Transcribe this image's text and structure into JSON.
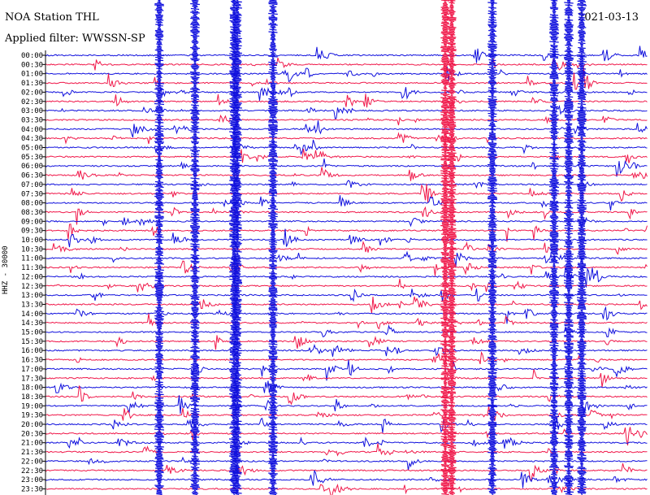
{
  "header": {
    "station": "NOA Station THL",
    "filter": "Applied filter: WWSSN-SP",
    "date": "2021-03-13"
  },
  "channel_label": "HHZ - 30000",
  "colors": {
    "trace_a": "#1010dd",
    "trace_b": "#f0184a",
    "axis": "#000000"
  },
  "chart_data": {
    "type": "line",
    "title": "NOA Station THL",
    "subtitle": "Applied filter: WWSSN-SP",
    "ylabel": "HHZ - 30000",
    "xlabel": "",
    "grid": false,
    "tick_labels": [
      "00:00",
      "00:30",
      "01:00",
      "01:30",
      "02:00",
      "02:30",
      "03:00",
      "03:30",
      "04:00",
      "04:30",
      "05:00",
      "05:30",
      "06:00",
      "06:30",
      "07:00",
      "07:30",
      "08:00",
      "08:30",
      "09:00",
      "09:30",
      "10:00",
      "10:30",
      "11:00",
      "11:30",
      "12:00",
      "12:30",
      "13:00",
      "13:30",
      "14:00",
      "14:30",
      "15:00",
      "15:30",
      "16:00",
      "16:30",
      "17:00",
      "17:30",
      "18:00",
      "18:30",
      "19:00",
      "19:30",
      "20:00",
      "20:30",
      "21:00",
      "21:30",
      "22:00",
      "22:30",
      "23:00",
      "23:30"
    ],
    "series": [
      {
        "color": "#1010dd"
      },
      {
        "color": "#f0184a"
      }
    ]
  }
}
